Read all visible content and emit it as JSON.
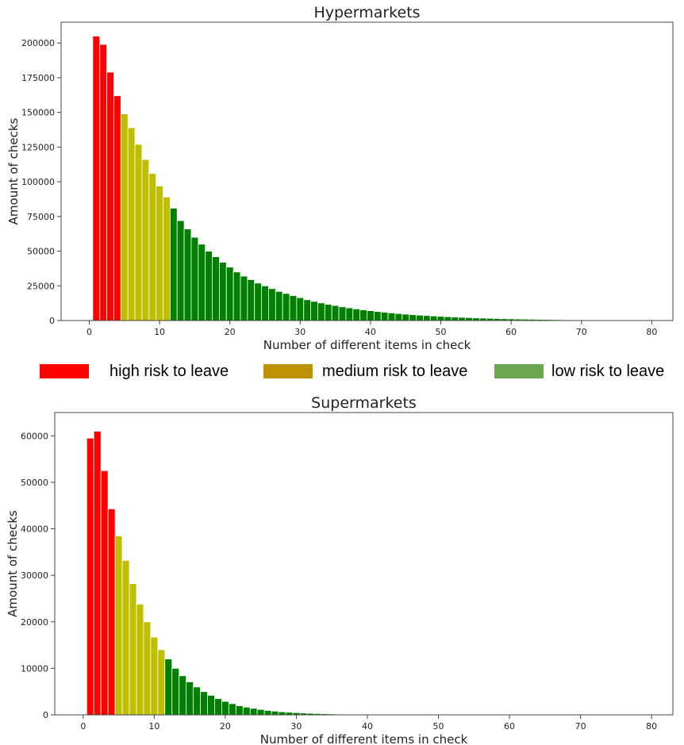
{
  "legend": {
    "items": [
      {
        "label": "high risk to leave",
        "color": "#ff0000"
      },
      {
        "label": "medium risk to leave",
        "color": "#bf9000"
      },
      {
        "label": "low risk to leave",
        "color": "#6aa84f"
      }
    ]
  },
  "colors": {
    "high": "#ff0000",
    "medium": "#bfbf00",
    "low": "#008000"
  },
  "chart_data": [
    {
      "type": "bar",
      "title": "Hypermarkets",
      "xlabel": "Number of different items in check",
      "ylabel": "Amount of checks",
      "xlim": [
        -4,
        83
      ],
      "ylim": [
        0,
        215000
      ],
      "xticks": [
        0,
        10,
        20,
        30,
        40,
        50,
        60,
        70,
        80
      ],
      "yticks": [
        0,
        25000,
        50000,
        75000,
        100000,
        125000,
        150000,
        175000,
        200000
      ],
      "grid": false,
      "x": [
        1,
        2,
        3,
        4,
        5,
        6,
        7,
        8,
        9,
        10,
        11,
        12,
        13,
        14,
        15,
        16,
        17,
        18,
        19,
        20,
        21,
        22,
        23,
        24,
        25,
        26,
        27,
        28,
        29,
        30,
        31,
        32,
        33,
        34,
        35,
        36,
        37,
        38,
        39,
        40,
        41,
        42,
        43,
        44,
        45,
        46,
        47,
        48,
        49,
        50,
        51,
        52,
        53,
        54,
        55,
        56,
        57,
        58,
        59,
        60,
        61,
        62,
        63,
        64,
        65,
        66,
        67,
        68,
        69
      ],
      "values": [
        205000,
        199000,
        179000,
        162000,
        149000,
        139000,
        127000,
        116000,
        106000,
        97000,
        89000,
        81000,
        72000,
        66000,
        60000,
        55000,
        50000,
        46000,
        42000,
        38500,
        35000,
        32000,
        29500,
        27000,
        25000,
        23000,
        21000,
        19500,
        18000,
        16500,
        15000,
        13800,
        12700,
        11700,
        10800,
        9900,
        9100,
        8400,
        7700,
        7100,
        6500,
        6000,
        5500,
        5000,
        4600,
        4200,
        3900,
        3600,
        3300,
        3000,
        2750,
        2500,
        2300,
        2100,
        1900,
        1750,
        1600,
        1450,
        1300,
        1200,
        1100,
        1000,
        900,
        820,
        750,
        680,
        610,
        550,
        490
      ],
      "risk": [
        "high",
        "high",
        "high",
        "high",
        "medium",
        "medium",
        "medium",
        "medium",
        "medium",
        "medium",
        "medium",
        "low",
        "low",
        "low",
        "low",
        "low",
        "low",
        "low",
        "low",
        "low",
        "low",
        "low",
        "low",
        "low",
        "low",
        "low",
        "low",
        "low",
        "low",
        "low",
        "low",
        "low",
        "low",
        "low",
        "low",
        "low",
        "low",
        "low",
        "low",
        "low",
        "low",
        "low",
        "low",
        "low",
        "low",
        "low",
        "low",
        "low",
        "low",
        "low",
        "low",
        "low",
        "low",
        "low",
        "low",
        "low",
        "low",
        "low",
        "low",
        "low",
        "low",
        "low",
        "low",
        "low",
        "low",
        "low",
        "low",
        "low",
        "low"
      ]
    },
    {
      "type": "bar",
      "title": "Supermarkets",
      "xlabel": "Number of different items in check",
      "ylabel": "Amount of checks",
      "xlim": [
        -4,
        83
      ],
      "ylim": [
        0,
        65000
      ],
      "xticks": [
        0,
        10,
        20,
        30,
        40,
        50,
        60,
        70,
        80
      ],
      "yticks": [
        0,
        10000,
        20000,
        30000,
        40000,
        50000,
        60000
      ],
      "grid": false,
      "x": [
        1,
        2,
        3,
        4,
        5,
        6,
        7,
        8,
        9,
        10,
        11,
        12,
        13,
        14,
        15,
        16,
        17,
        18,
        19,
        20,
        21,
        22,
        23,
        24,
        25,
        26,
        27,
        28,
        29,
        30,
        31,
        32,
        33,
        34,
        35,
        36,
        37,
        38,
        39,
        40
      ],
      "values": [
        59500,
        61000,
        52500,
        44300,
        38500,
        33200,
        28200,
        23800,
        20000,
        16700,
        14000,
        12000,
        10000,
        8400,
        7100,
        6000,
        5000,
        4200,
        3500,
        2900,
        2400,
        1950,
        1650,
        1400,
        1150,
        950,
        800,
        650,
        560,
        470,
        390,
        330,
        280,
        230,
        190,
        160,
        130,
        110,
        90,
        70
      ],
      "risk": [
        "high",
        "high",
        "high",
        "high",
        "medium",
        "medium",
        "medium",
        "medium",
        "medium",
        "medium",
        "medium",
        "low",
        "low",
        "low",
        "low",
        "low",
        "low",
        "low",
        "low",
        "low",
        "low",
        "low",
        "low",
        "low",
        "low",
        "low",
        "low",
        "low",
        "low",
        "low",
        "low",
        "low",
        "low",
        "low",
        "low",
        "low",
        "low",
        "low",
        "low",
        "low"
      ]
    }
  ]
}
